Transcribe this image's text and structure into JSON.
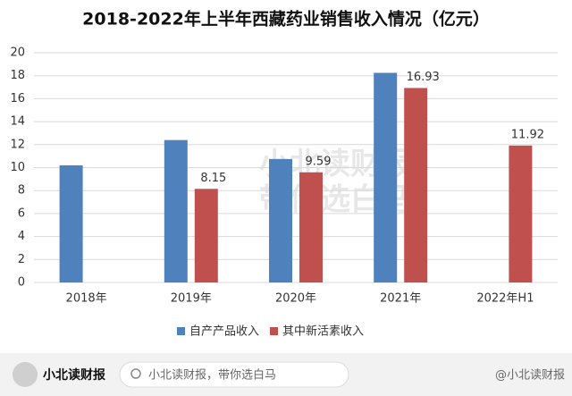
{
  "chart_data": {
    "type": "bar",
    "title": "2018-2022年上半年西藏药业销售收入情况（亿元）",
    "categories": [
      "2018年",
      "2019年",
      "2020年",
      "2021年",
      "2022年H1"
    ],
    "series": [
      {
        "name": "自产产品收入",
        "color": "#4f81bd",
        "values": [
          10.2,
          12.4,
          10.75,
          18.25,
          null
        ],
        "data_labels": false
      },
      {
        "name": "其中新活素收入",
        "color": "#c0504d",
        "values": [
          null,
          8.15,
          9.59,
          16.93,
          11.92
        ],
        "data_labels": true
      }
    ],
    "ylim": [
      0,
      20
    ],
    "yticks": [
      0,
      2,
      4,
      6,
      8,
      10,
      12,
      14,
      16,
      18,
      20
    ],
    "grid": true,
    "legend": "bottom"
  },
  "watermark": [
    "小北读财报",
    "带你选白马"
  ],
  "footer": {
    "account": "小北读财报",
    "search": "小北读财报，带你选白马",
    "handle": "@小北读财报"
  }
}
